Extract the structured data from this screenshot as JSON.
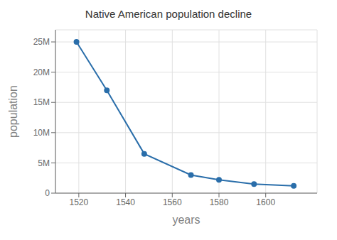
{
  "chart_data": {
    "type": "line",
    "title": "Native American population decline",
    "xlabel": "years",
    "ylabel": "population",
    "x": [
      1519,
      1532,
      1548,
      1568,
      1580,
      1595,
      1612
    ],
    "values": [
      25000000,
      17000000,
      6500000,
      3000000,
      2200000,
      1500000,
      1200000
    ],
    "color": "#2a6eaa",
    "marker": "circle",
    "xlim": [
      1510,
      1622
    ],
    "ylim": [
      0,
      27000000
    ],
    "xticks": [
      1520,
      1540,
      1560,
      1580,
      1600
    ],
    "yticks": [
      0,
      {
        "value": 5000000,
        "label": "5M"
      },
      {
        "value": 10000000,
        "label": "10M"
      },
      {
        "value": 15000000,
        "label": "15M"
      },
      {
        "value": 20000000,
        "label": "20M"
      },
      {
        "value": 25000000,
        "label": "25M"
      }
    ],
    "grid": true
  }
}
